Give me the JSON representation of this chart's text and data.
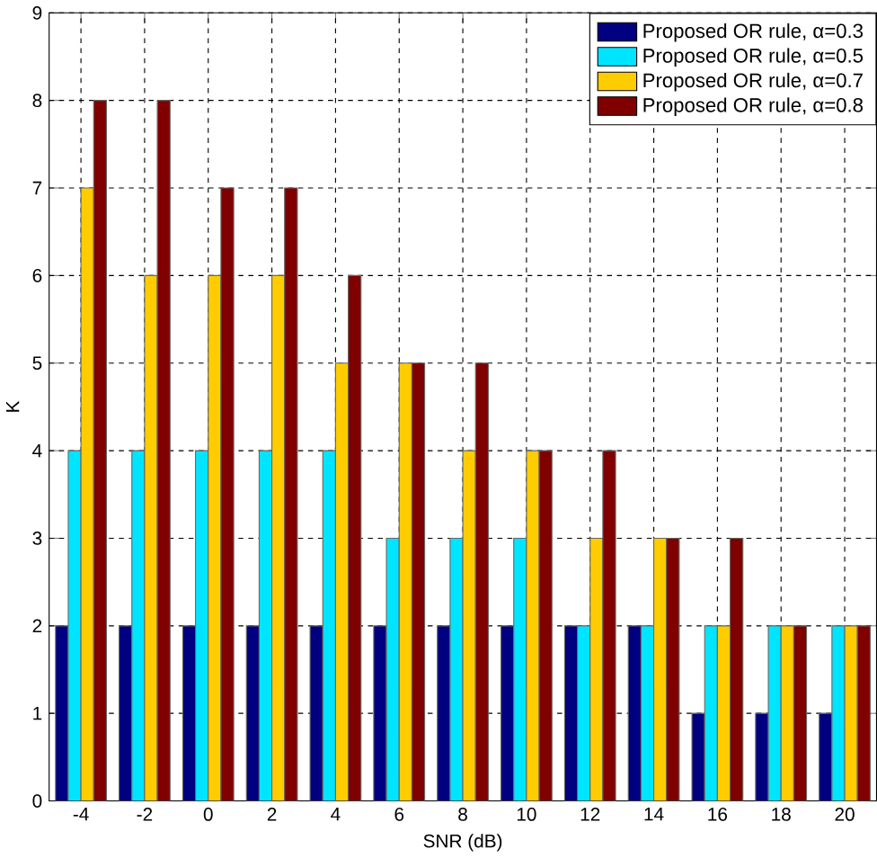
{
  "chart_data": {
    "type": "bar",
    "xlabel": "SNR (dB)",
    "ylabel": "K",
    "categories": [
      "-4",
      "-2",
      "0",
      "2",
      "4",
      "6",
      "8",
      "10",
      "12",
      "14",
      "16",
      "18",
      "20"
    ],
    "series": [
      {
        "name": "Proposed OR rule, α=0.3",
        "color": "#000080",
        "values": [
          2,
          2,
          2,
          2,
          2,
          2,
          2,
          2,
          2,
          2,
          1,
          1,
          1
        ]
      },
      {
        "name": "Proposed OR rule, α=0.5",
        "color": "#00e5ff",
        "values": [
          4,
          4,
          4,
          4,
          4,
          3,
          3,
          3,
          2,
          2,
          2,
          2,
          2
        ]
      },
      {
        "name": "Proposed OR rule, α=0.7",
        "color": "#ffcc00",
        "values": [
          7,
          6,
          6,
          6,
          5,
          5,
          4,
          4,
          3,
          3,
          2,
          2,
          2
        ]
      },
      {
        "name": "Proposed OR rule, α=0.8",
        "color": "#800000",
        "values": [
          8,
          8,
          7,
          7,
          6,
          5,
          5,
          4,
          4,
          3,
          3,
          2,
          2
        ]
      }
    ],
    "ylim": [
      0,
      9
    ],
    "yticks": [
      0,
      1,
      2,
      3,
      4,
      5,
      6,
      7,
      8,
      9
    ],
    "grid": true,
    "legend": "top right"
  }
}
